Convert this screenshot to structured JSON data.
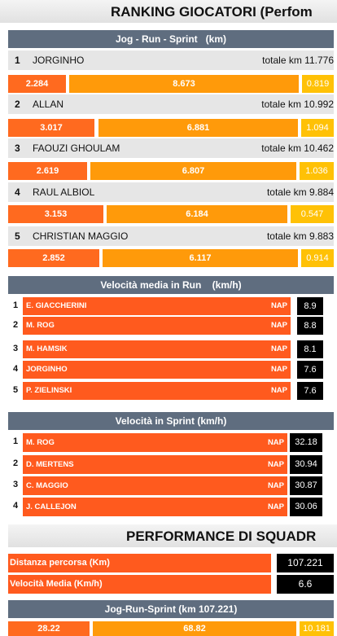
{
  "header": {
    "title": "RANKING GIOCATORI (Perfom"
  },
  "jrs": {
    "header": "Jog - Run - Sprint   (km)",
    "players": [
      {
        "rank": "1",
        "name": "JORGINHO",
        "total": "totale km 11.776",
        "jog": "2.284",
        "run": "8.673",
        "sprint": "0.819"
      },
      {
        "rank": "2",
        "name": "ALLAN",
        "total": "totale km 10.992",
        "jog": "3.017",
        "run": "6.881",
        "sprint": "1.094"
      },
      {
        "rank": "3",
        "name": "FAOUZI GHOULAM",
        "total": "totale km 10.462",
        "jog": "2.619",
        "run": "6.807",
        "sprint": "1.036"
      },
      {
        "rank": "4",
        "name": "RAUL ALBIOL",
        "total": "totale km 9.884",
        "jog": "3.153",
        "run": "6.184",
        "sprint": "0.547"
      },
      {
        "rank": "5",
        "name": "CHRISTIAN MAGGIO",
        "total": "totale km 9.883",
        "jog": "2.852",
        "run": "6.117",
        "sprint": "0.914"
      }
    ]
  },
  "run_speed": {
    "header": "Velocità media in Run    (km/h)",
    "rows": [
      {
        "rank": "1",
        "name": "E. GIACCHERINI",
        "team": "NAP",
        "value": "8.9"
      },
      {
        "rank": "2",
        "name": "M. ROG",
        "team": "NAP",
        "value": "8.8"
      },
      {
        "rank": "3",
        "name": "M. HAMSIK",
        "team": "NAP",
        "value": "8.1"
      },
      {
        "rank": "4",
        "name": "JORGINHO",
        "team": "NAP",
        "value": "7.6"
      },
      {
        "rank": "5",
        "name": "P. ZIELINSKI",
        "team": "NAP",
        "value": "7.6"
      }
    ]
  },
  "sprint_speed": {
    "header": "Velocità in Sprint (km/h)",
    "rows": [
      {
        "rank": "1",
        "name": "M. ROG",
        "team": "NAP",
        "value": "32.18"
      },
      {
        "rank": "2",
        "name": "D. MERTENS",
        "team": "NAP",
        "value": "30.94"
      },
      {
        "rank": "3",
        "name": "C. MAGGIO",
        "team": "NAP",
        "value": "30.87"
      },
      {
        "rank": "4",
        "name": "J. CALLEJON",
        "team": "NAP",
        "value": "30.06"
      }
    ]
  },
  "team": {
    "title": "PERFORMANCE DI SQUADR",
    "distance_label": "Distanza percorsa (Km)",
    "distance_value": "107.221",
    "speed_label": "Velocità Media (Km/h)",
    "speed_value": "6.6",
    "jrs_header": "Jog-Run-Sprint (km 107.221)",
    "jog": "28.22",
    "run": "68.82",
    "sprint": "10.181"
  },
  "colors": {
    "header_bg": "#5f6d7f",
    "jog": "#ff6a1f",
    "run": "#ff9a0a",
    "sprint": "#ffc106",
    "rank_bar": "#ff5a1e",
    "value_box": "#000000"
  }
}
